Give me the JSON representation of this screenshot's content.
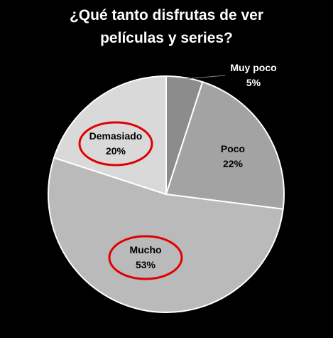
{
  "title_lines": [
    "¿Qué tanto disfrutas de ver",
    "películas y series?"
  ],
  "chart_data": {
    "type": "pie",
    "title": "¿Qué tanto disfrutas de ver películas y series?",
    "labels": [
      "Muy poco",
      "Poco",
      "Mucho",
      "Demasiado"
    ],
    "values": [
      5,
      22,
      53,
      20
    ],
    "value_labels": [
      "5%",
      "22%",
      "53%",
      "20%"
    ],
    "colors": [
      "#8c8c8c",
      "#a3a3a3",
      "#bababa",
      "#d9d9d9"
    ],
    "highlighted": [
      "Mucho",
      "Demasiado"
    ],
    "highlight_color": "#e00000",
    "legend": "none"
  }
}
